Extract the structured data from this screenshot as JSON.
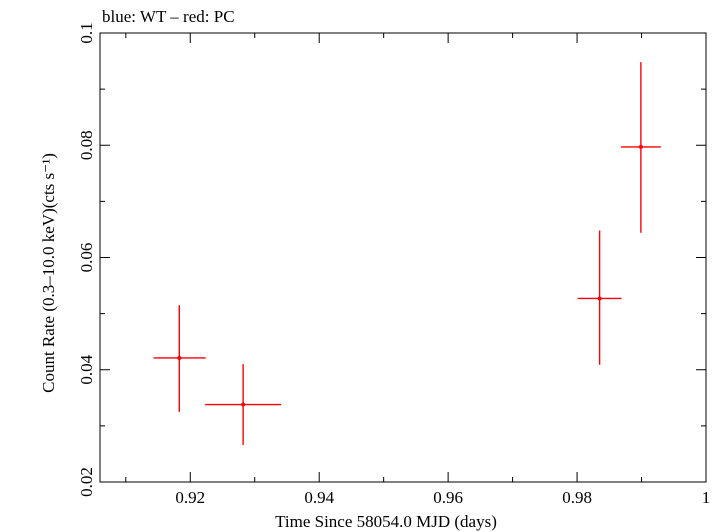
{
  "chart_data": {
    "type": "scatter",
    "title": "blue: WT – red: PC",
    "xlabel": "Time Since 58054.0 MJD (days)",
    "ylabel": "Count Rate (0.3–10.0 keV)(cts s⁻¹)",
    "xlim": [
      0.906,
      1.0
    ],
    "ylim": [
      0.02,
      0.1
    ],
    "x_ticks": [
      0.92,
      0.94,
      0.96,
      0.98,
      1.0
    ],
    "x_tick_labels": [
      "0.92",
      "0.94",
      "0.96",
      "0.98",
      "1"
    ],
    "y_ticks": [
      0.02,
      0.04,
      0.06,
      0.08,
      0.1
    ],
    "y_tick_labels": [
      "0.02",
      "0.04",
      "0.06",
      "0.08",
      "0.1"
    ],
    "grid": false,
    "series": [
      {
        "name": "PC",
        "color": "#ff0000",
        "points": [
          {
            "x": 0.9183,
            "y": 0.0421,
            "xerr_lo": 0.004,
            "xerr_hi": 0.0041,
            "yerr_lo": 0.0096,
            "yerr_hi": 0.0094
          },
          {
            "x": 0.9282,
            "y": 0.0338,
            "xerr_lo": 0.0059,
            "xerr_hi": 0.0059,
            "yerr_lo": 0.0072,
            "yerr_hi": 0.0072
          },
          {
            "x": 0.9835,
            "y": 0.0527,
            "xerr_lo": 0.0034,
            "xerr_hi": 0.0034,
            "yerr_lo": 0.0118,
            "yerr_hi": 0.0121
          },
          {
            "x": 0.9899,
            "y": 0.0797,
            "xerr_lo": 0.0031,
            "xerr_hi": 0.0031,
            "yerr_lo": 0.0153,
            "yerr_hi": 0.0151
          }
        ]
      }
    ]
  }
}
